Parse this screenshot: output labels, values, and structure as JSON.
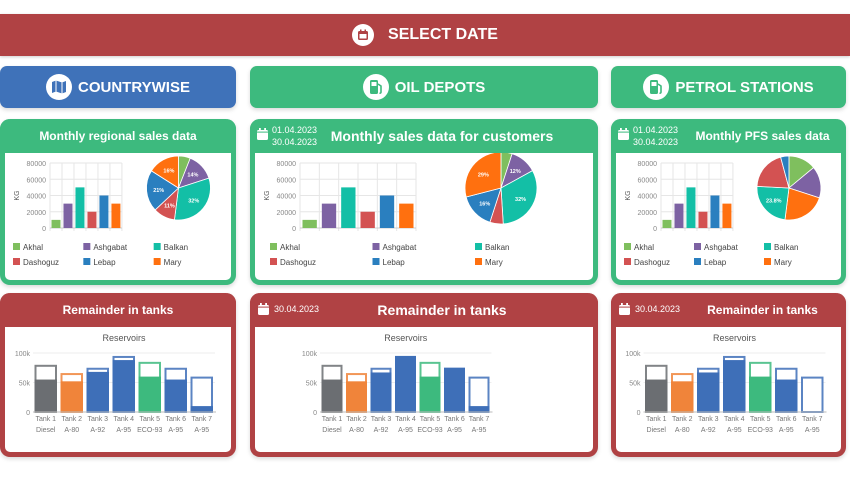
{
  "header": {
    "select_date": "SELECT DATE",
    "icon": "calendar-icon"
  },
  "colors": {
    "red": "#b04244",
    "green": "#3dba7e",
    "blue": "#3f72b9"
  },
  "legend_colors": {
    "Akhal": "#7fbf5e",
    "Ashgabat": "#7d62a3",
    "Balkan": "#13bfa6",
    "Dashoguz": "#d35252",
    "Lebap": "#2a7fbf",
    "Mary": "#ff700f"
  },
  "tank_colors": {
    "Diesel": "#6b6e72",
    "A-80": "#f0843a",
    "A-92": "#3e6fb8",
    "A-95": "#3e6fb8",
    "ECO-93": "#3dba7e"
  },
  "columns": [
    {
      "nav": {
        "label": "COUNTRYWISE",
        "icon": "map-icon",
        "color": "#3f72b9",
        "active": true
      },
      "sales": {
        "title": "Monthly regional sales data",
        "date_from": "",
        "date_to": ""
      },
      "tanks": {
        "title": "Remainder in tanks",
        "date": ""
      }
    },
    {
      "nav": {
        "label": "OIL DEPOTS",
        "icon": "fuel-pump-icon",
        "color": "#3dba7e"
      },
      "sales": {
        "title": "Monthly sales data for customers",
        "date_from": "01.04.2023",
        "date_to": "30.04.2023"
      },
      "tanks": {
        "title": "Remainder in tanks",
        "date": "30.04.2023"
      }
    },
    {
      "nav": {
        "label": "PETROL STATIONS",
        "icon": "fuel-pump-icon",
        "color": "#3dba7e"
      },
      "sales": {
        "title": "Monthly PFS sales data",
        "date_from": "01.04.2023",
        "date_to": "30.04.2023"
      },
      "tanks": {
        "title": "Remainder in tanks",
        "date": "30.04.2023"
      }
    }
  ],
  "chart_data": [
    {
      "type": "bar",
      "ylabel": "KG",
      "ylim": [
        0,
        80000
      ],
      "yticks": [
        "0",
        "20000",
        "40000",
        "60000",
        "80000"
      ],
      "categories": [
        "Akhal",
        "Ashgabat",
        "Balkan",
        "Dashoguz",
        "Lebap",
        "Mary"
      ],
      "values": [
        10000,
        30000,
        50000,
        20000,
        40000,
        30000
      ],
      "grid": true,
      "pie": [
        {
          "name": "Akhal",
          "value": 6,
          "label": ""
        },
        {
          "name": "Ashgabat",
          "value": 14,
          "label": "14%"
        },
        {
          "name": "Balkan",
          "value": 32,
          "label": "32%"
        },
        {
          "name": "Dashoguz",
          "value": 11,
          "label": "11%"
        },
        {
          "name": "Lebap",
          "value": 21,
          "label": "21%"
        },
        {
          "name": "Mary",
          "value": 16,
          "label": "16%"
        }
      ]
    },
    {
      "type": "bar",
      "ylabel": "KG",
      "ylim": [
        0,
        80000
      ],
      "yticks": [
        "0",
        "20000",
        "40000",
        "60000",
        "80000"
      ],
      "categories": [
        "Akhal",
        "Ashgabat",
        "Balkan",
        "Dashoguz",
        "Lebap",
        "Mary"
      ],
      "values": [
        10000,
        30000,
        50000,
        20000,
        40000,
        30000
      ],
      "grid": true,
      "pie": [
        {
          "name": "Akhal",
          "value": 5,
          "label": ""
        },
        {
          "name": "Ashgabat",
          "value": 12,
          "label": "12%"
        },
        {
          "name": "Balkan",
          "value": 32,
          "label": "32%"
        },
        {
          "name": "Dashoguz",
          "value": 6,
          "label": ""
        },
        {
          "name": "Lebap",
          "value": 16,
          "label": "16%"
        },
        {
          "name": "Mary",
          "value": 29,
          "label": "29%"
        }
      ]
    },
    {
      "type": "bar",
      "ylabel": "KG",
      "ylim": [
        0,
        80000
      ],
      "yticks": [
        "0",
        "20000",
        "40000",
        "60000",
        "80000"
      ],
      "categories": [
        "Akhal",
        "Ashgabat",
        "Balkan",
        "Dashoguz",
        "Lebap",
        "Mary"
      ],
      "values": [
        10000,
        30000,
        50000,
        20000,
        40000,
        30000
      ],
      "grid": true,
      "pie": [
        {
          "name": "Akhal",
          "value": 14,
          "label": ""
        },
        {
          "name": "Ashgabat",
          "value": 16,
          "label": ""
        },
        {
          "name": "Mary",
          "value": 22,
          "label": ""
        },
        {
          "name": "Balkan",
          "value": 23.8,
          "label": "23.8%"
        },
        {
          "name": "Dashoguz",
          "value": 20,
          "label": ""
        },
        {
          "name": "Lebap",
          "value": 4.2,
          "label": ""
        }
      ]
    },
    {
      "type": "bar",
      "title": "Reservoirs",
      "ylim": [
        0,
        100000
      ],
      "yticks": [
        "0",
        "50k",
        "100k"
      ],
      "tanks": [
        {
          "name": "Tank 1",
          "fuel": "Diesel",
          "capacity": 80000,
          "level": 55000
        },
        {
          "name": "Tank 2",
          "fuel": "A-80",
          "capacity": 66000,
          "level": 52000
        },
        {
          "name": "Tank 3",
          "fuel": "A-92",
          "capacity": 75000,
          "level": 68000
        },
        {
          "name": "Tank 4",
          "fuel": "A-95",
          "capacity": 95000,
          "level": 88000
        },
        {
          "name": "Tank 5",
          "fuel": "ECO-93",
          "capacity": 85000,
          "level": 60000
        },
        {
          "name": "Tank 6",
          "fuel": "A-95",
          "capacity": 75000,
          "level": 55000
        },
        {
          "name": "Tank 7",
          "fuel": "A-95",
          "capacity": 60000,
          "level": 10000
        }
      ]
    },
    {
      "type": "bar",
      "title": "Reservoirs",
      "ylim": [
        0,
        100000
      ],
      "yticks": [
        "0",
        "50k",
        "100k"
      ],
      "tanks": [
        {
          "name": "Tank 1",
          "fuel": "Diesel",
          "capacity": 80000,
          "level": 55000
        },
        {
          "name": "Tank 2",
          "fuel": "A-80",
          "capacity": 66000,
          "level": 52000
        },
        {
          "name": "Tank 3",
          "fuel": "A-92",
          "capacity": 75000,
          "level": 67000
        },
        {
          "name": "Tank 4",
          "fuel": "A-95",
          "capacity": 95000,
          "level": 95000
        },
        {
          "name": "Tank 5",
          "fuel": "ECO-93",
          "capacity": 85000,
          "level": 60000
        },
        {
          "name": "Tank 6",
          "fuel": "A-95",
          "capacity": 75000,
          "level": 75000
        },
        {
          "name": "Tank 7",
          "fuel": "A-95",
          "capacity": 60000,
          "level": 10000
        }
      ]
    },
    {
      "type": "bar",
      "title": "Reservoirs",
      "ylim": [
        0,
        100000
      ],
      "yticks": [
        "0",
        "50k",
        "100k"
      ],
      "tanks": [
        {
          "name": "Tank 1",
          "fuel": "Diesel",
          "capacity": 80000,
          "level": 55000
        },
        {
          "name": "Tank 2",
          "fuel": "A-80",
          "capacity": 66000,
          "level": 52000
        },
        {
          "name": "Tank 3",
          "fuel": "A-92",
          "capacity": 75000,
          "level": 67000
        },
        {
          "name": "Tank 4",
          "fuel": "A-95",
          "capacity": 95000,
          "level": 88000
        },
        {
          "name": "Tank 5",
          "fuel": "ECO-93",
          "capacity": 85000,
          "level": 60000
        },
        {
          "name": "Tank 6",
          "fuel": "A-95",
          "capacity": 75000,
          "level": 55000
        },
        {
          "name": "Tank 7",
          "fuel": "A-95",
          "capacity": 60000,
          "level": 0
        }
      ]
    }
  ]
}
